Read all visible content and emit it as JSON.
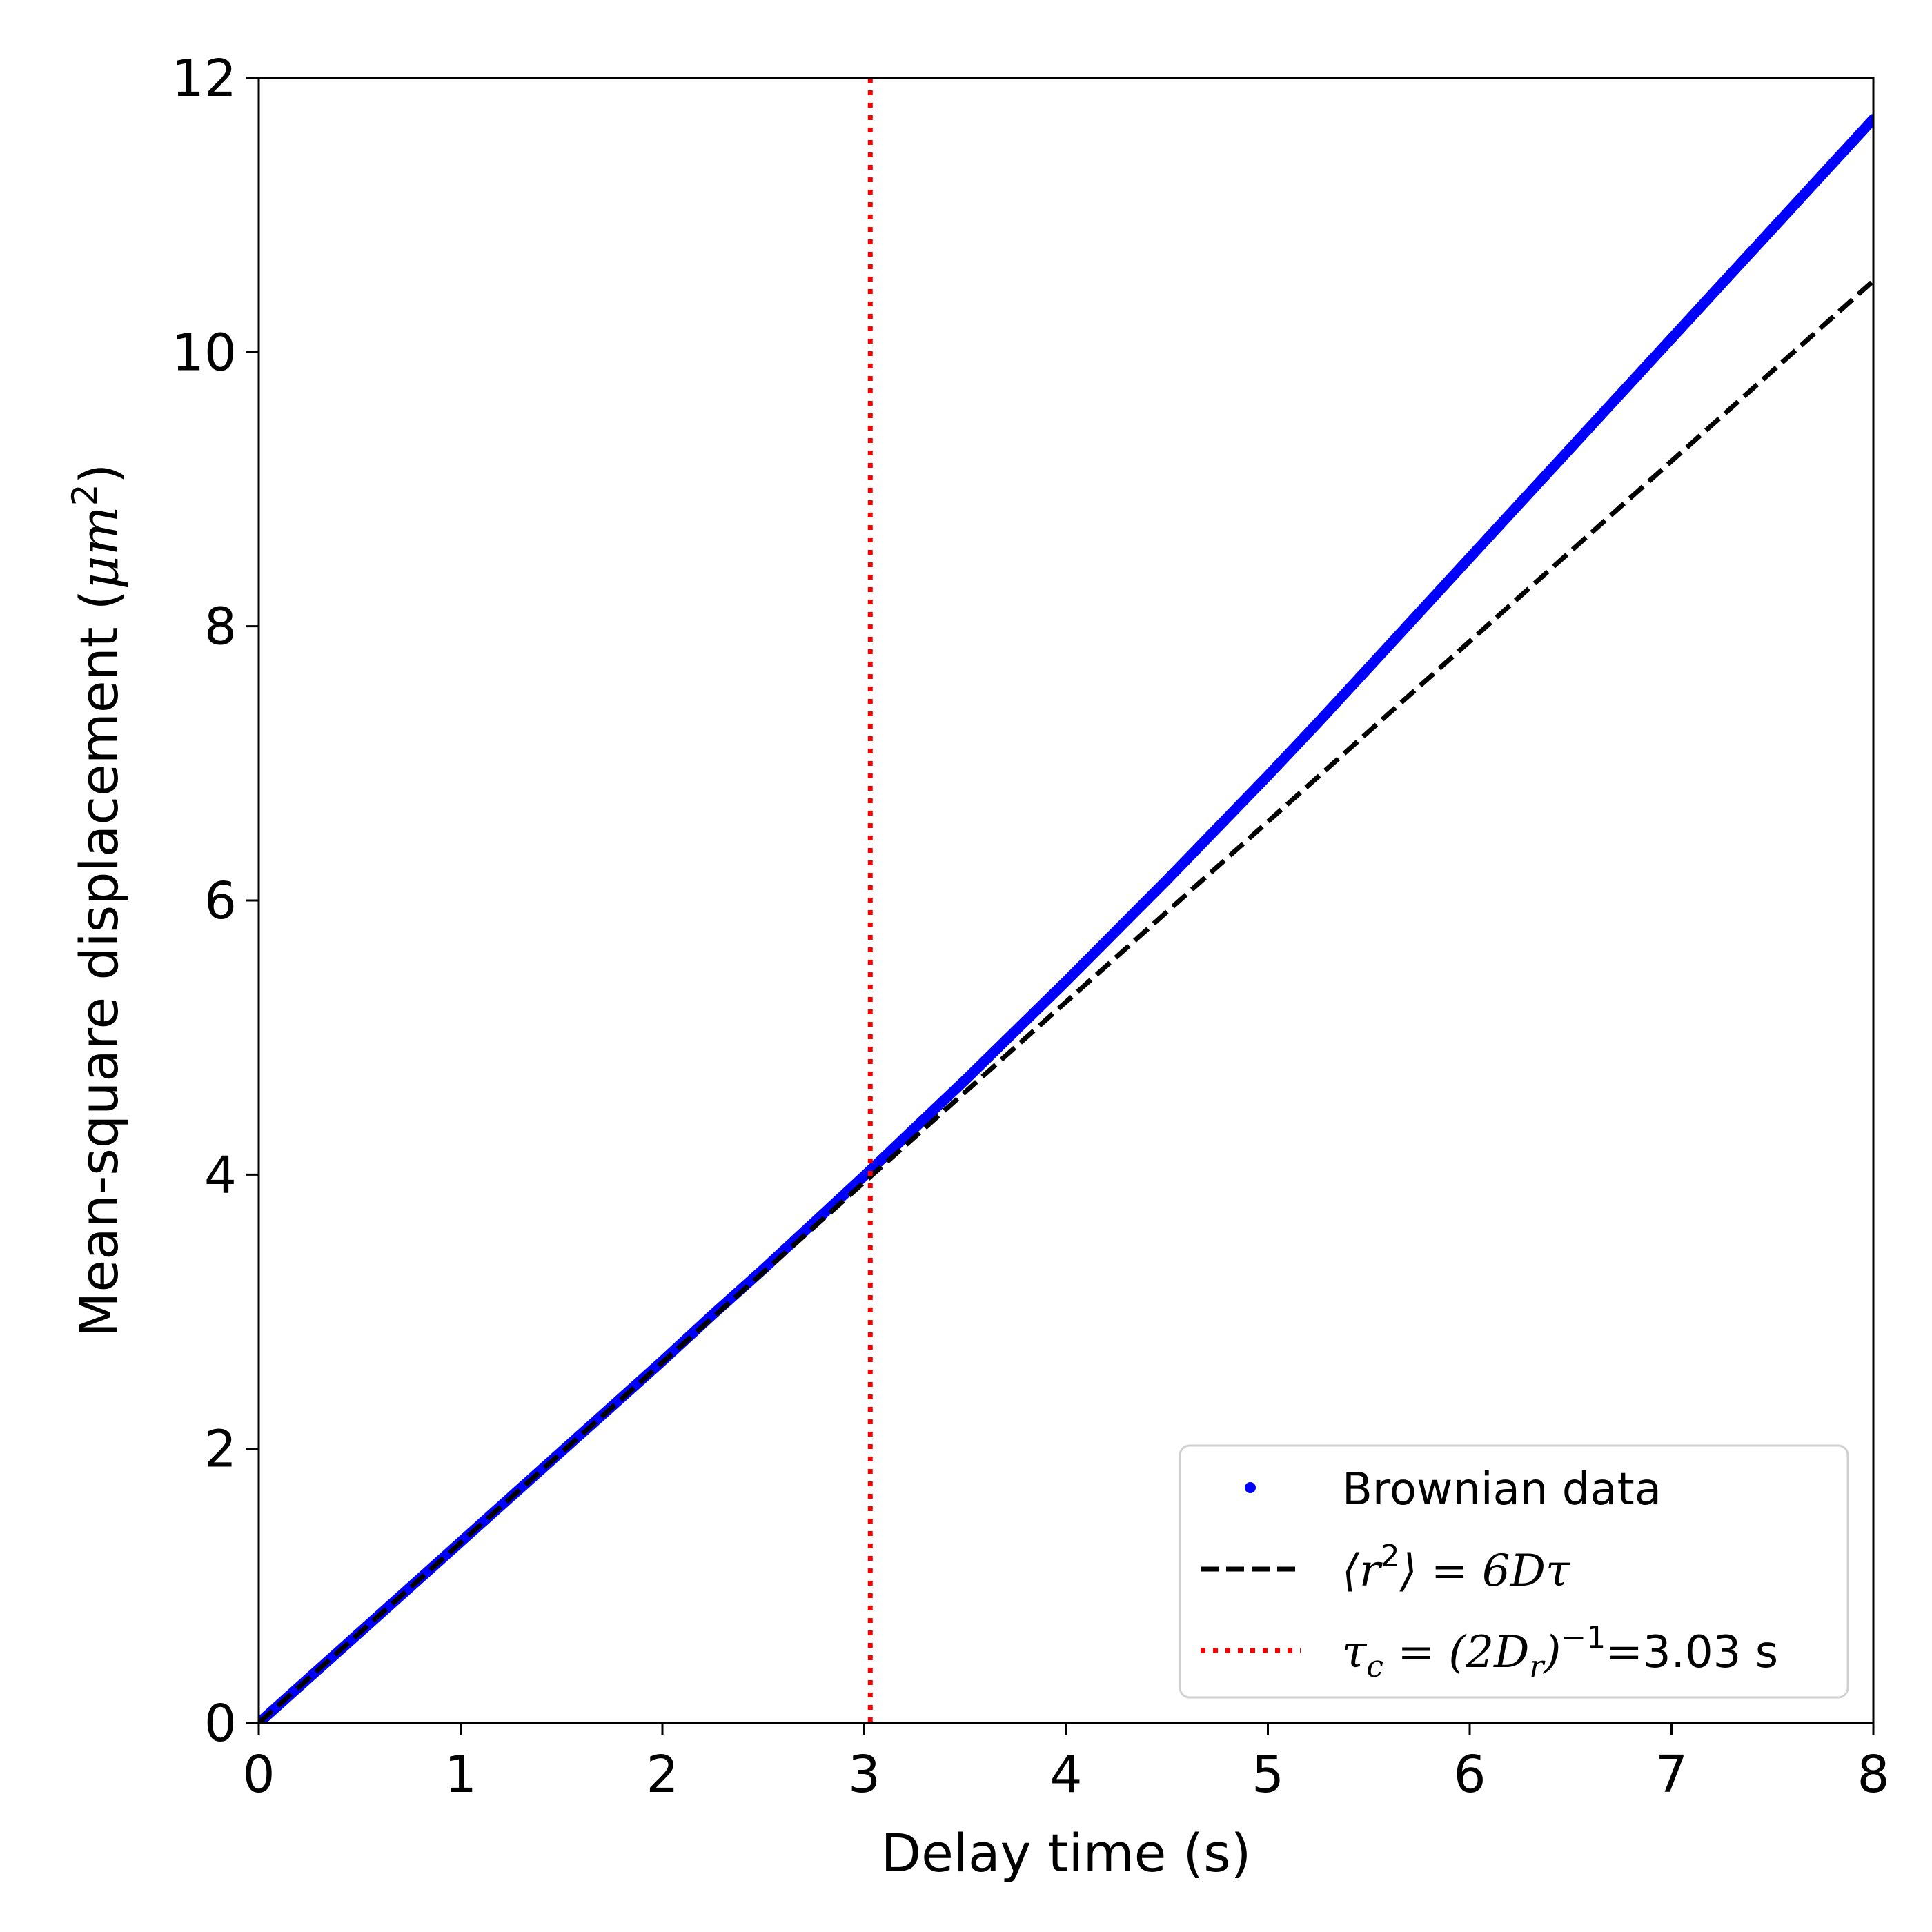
{
  "chart_data": {
    "type": "line",
    "xlabel": "Delay time (s)",
    "ylabel": {
      "text": "Mean-square displacement (",
      "unit_mu": "μm",
      "unit_exp": "2",
      "close": ")"
    },
    "xlim": [
      0,
      8
    ],
    "ylim": [
      0,
      12
    ],
    "x_ticks": [
      0,
      1,
      2,
      3,
      4,
      5,
      6,
      7,
      8
    ],
    "y_ticks": [
      0,
      2,
      4,
      6,
      8,
      10,
      12
    ],
    "grid": false,
    "legend_position": "lower right",
    "series": [
      {
        "name": "Brownian data",
        "style": "points",
        "color": "#0000ff",
        "x": [
          0,
          0.25,
          0.5,
          0.75,
          1,
          1.25,
          1.5,
          1.75,
          2,
          2.25,
          2.5,
          2.75,
          3,
          3.25,
          3.5,
          3.75,
          4,
          4.25,
          4.5,
          4.75,
          5,
          5.25,
          5.5,
          5.75,
          6,
          6.25,
          6.5,
          6.75,
          7,
          7.25,
          7.5,
          7.75,
          8
        ],
        "y": [
          0,
          0.33,
          0.66,
          0.99,
          1.32,
          1.65,
          1.98,
          2.31,
          2.64,
          2.98,
          3.31,
          3.65,
          3.99,
          4.34,
          4.69,
          5.05,
          5.41,
          5.78,
          6.15,
          6.53,
          6.91,
          7.3,
          7.7,
          8.1,
          8.5,
          8.9,
          9.3,
          9.7,
          10.1,
          10.5,
          10.9,
          11.3,
          11.7
        ]
      },
      {
        "name": "⟨r²⟩ = 6Dτ",
        "style": "dashed",
        "color": "#000000",
        "x": [
          0,
          8
        ],
        "y": [
          0,
          10.52
        ]
      }
    ],
    "vline": {
      "name": "τc = (2Dr)⁻¹=3.03 s",
      "x": 3.03,
      "style": "dotted",
      "color": "#ff0000"
    },
    "legend": [
      {
        "label": "Brownian data"
      },
      {
        "lhs": "⟨r",
        "sup": "2",
        "rhs": "⟩ = 6Dτ"
      },
      {
        "tau": "τ",
        "sub": "c",
        "eq": " = (2D",
        "sub2": "r",
        "close": ")",
        "sup": "−1",
        "value": "=3.03 s"
      }
    ]
  }
}
